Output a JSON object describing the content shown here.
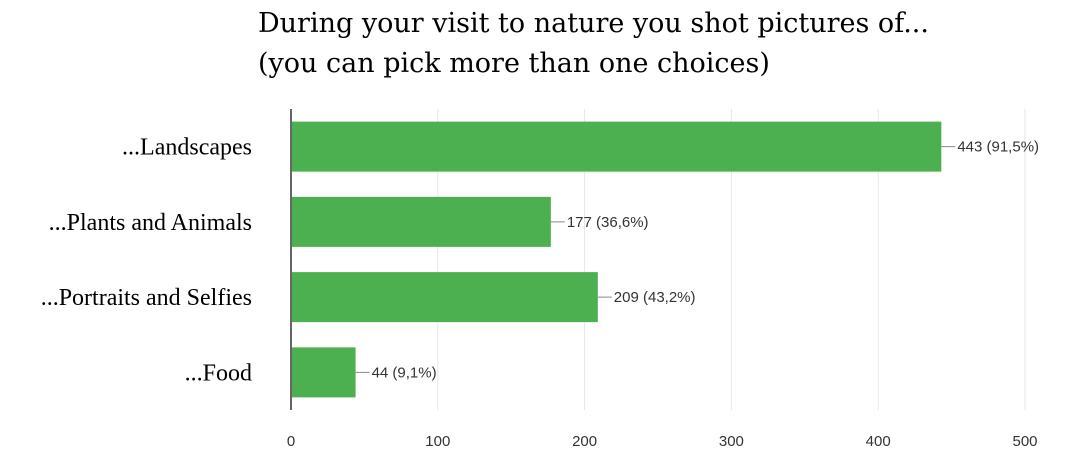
{
  "chart_data": {
    "type": "bar",
    "orientation": "horizontal",
    "title_lines": [
      "During your visit to nature you shot pictures of...",
      "(you can pick more than one choices)"
    ],
    "categories": [
      "...Landscapes",
      "...Plants and Animals",
      "...Portraits and Selfies",
      "...Food"
    ],
    "values": [
      443,
      177,
      209,
      44
    ],
    "data_labels": [
      "443 (91,5%)",
      "177 (36,6%)",
      "209 (43,2%)",
      "44 (9,1%)"
    ],
    "xlim": [
      0,
      500
    ],
    "x_ticks": [
      0,
      100,
      200,
      300,
      400,
      500
    ],
    "grid": true,
    "bar_color": "#4caf50"
  }
}
